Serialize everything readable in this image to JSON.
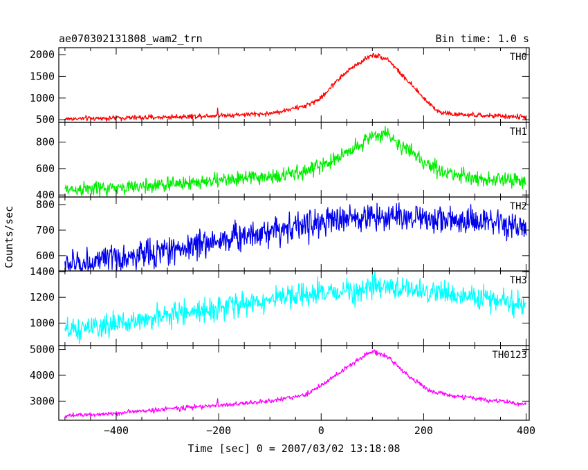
{
  "header": {
    "title": "ae070302131808_wam2_trn",
    "bin_time": "Bin time: 1.0 s"
  },
  "chart_data": {
    "type": "line",
    "xlabel": "Time [sec] 0 = 2007/03/02 13:18:08",
    "ylabel": "Counts/sec",
    "xlim": [
      -512,
      406
    ],
    "x_ticks": [
      -400,
      -200,
      0,
      200,
      400
    ],
    "x_tick_labels": [
      "−400",
      "−200",
      "0",
      "200",
      "400"
    ],
    "x_range": [
      -500,
      400
    ],
    "grid": false,
    "panels": [
      {
        "name": "TH0",
        "color": "#ff0000",
        "ylim": [
          440,
          2160
        ],
        "y_ticks": [
          500,
          1000,
          1500,
          2000
        ],
        "y_tick_labels": [
          "500",
          "1000",
          "1500",
          "2000"
        ],
        "noise": 28,
        "spike": {
          "x": -202,
          "height": 130
        },
        "keypoints": [
          [
            -500,
            520
          ],
          [
            -300,
            560
          ],
          [
            -200,
            600
          ],
          [
            -100,
            640
          ],
          [
            -30,
            820
          ],
          [
            0,
            1000
          ],
          [
            30,
            1400
          ],
          [
            60,
            1700
          ],
          [
            100,
            2000
          ],
          [
            130,
            1900
          ],
          [
            160,
            1500
          ],
          [
            200,
            1000
          ],
          [
            230,
            680
          ],
          [
            260,
            620
          ],
          [
            400,
            560
          ]
        ]
      },
      {
        "name": "TH1",
        "color": "#00ee00",
        "ylim": [
          385,
          950
        ],
        "y_ticks": [
          400,
          600,
          800
        ],
        "y_tick_labels": [
          "400",
          "600",
          "800"
        ],
        "noise": 28,
        "keypoints": [
          [
            -500,
            440
          ],
          [
            -400,
            450
          ],
          [
            -300,
            480
          ],
          [
            -200,
            510
          ],
          [
            -100,
            540
          ],
          [
            -50,
            560
          ],
          [
            0,
            620
          ],
          [
            50,
            720
          ],
          [
            100,
            850
          ],
          [
            130,
            860
          ],
          [
            160,
            760
          ],
          [
            200,
            650
          ],
          [
            250,
            560
          ],
          [
            300,
            530
          ],
          [
            400,
            500
          ]
        ]
      },
      {
        "name": "TH2",
        "color": "#0000ee",
        "ylim": [
          540,
          830
        ],
        "y_ticks": [
          600,
          700,
          800
        ],
        "y_tick_labels": [
          "600",
          "700",
          "800"
        ],
        "noise": 28,
        "keypoints": [
          [
            -500,
            565
          ],
          [
            -400,
            585
          ],
          [
            -300,
            620
          ],
          [
            -200,
            660
          ],
          [
            -100,
            700
          ],
          [
            0,
            730
          ],
          [
            100,
            755
          ],
          [
            200,
            750
          ],
          [
            300,
            730
          ],
          [
            400,
            710
          ]
        ]
      },
      {
        "name": "TH3",
        "color": "#00ffff",
        "ylim": [
          825,
          1405
        ],
        "y_ticks": [
          1000,
          1200,
          1400
        ],
        "y_tick_labels": [
          "1000",
          "1200",
          "1400"
        ],
        "noise": 45,
        "keypoints": [
          [
            -500,
            930
          ],
          [
            -400,
            990
          ],
          [
            -300,
            1060
          ],
          [
            -200,
            1120
          ],
          [
            -100,
            1180
          ],
          [
            0,
            1230
          ],
          [
            100,
            1270
          ],
          [
            150,
            1275
          ],
          [
            200,
            1250
          ],
          [
            300,
            1200
          ],
          [
            400,
            1140
          ]
        ]
      },
      {
        "name": "TH0123",
        "color": "#ff00ff",
        "ylim": [
          2260,
          5150
        ],
        "y_ticks": [
          3000,
          4000,
          5000
        ],
        "y_tick_labels": [
          "3000",
          "4000",
          "5000"
        ],
        "noise": 45,
        "spike": {
          "x": -202,
          "height": 250
        },
        "keypoints": [
          [
            -500,
            2420
          ],
          [
            -400,
            2530
          ],
          [
            -300,
            2700
          ],
          [
            -200,
            2830
          ],
          [
            -100,
            3000
          ],
          [
            -30,
            3250
          ],
          [
            0,
            3600
          ],
          [
            50,
            4300
          ],
          [
            100,
            4950
          ],
          [
            130,
            4700
          ],
          [
            170,
            4000
          ],
          [
            210,
            3400
          ],
          [
            260,
            3200
          ],
          [
            400,
            2870
          ]
        ]
      }
    ]
  }
}
